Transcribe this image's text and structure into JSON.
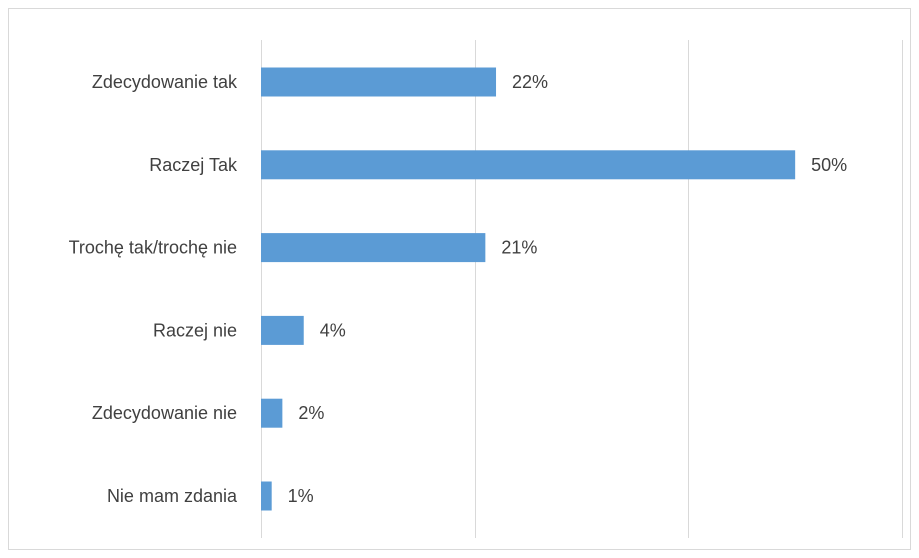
{
  "chart_data": {
    "type": "bar",
    "orientation": "horizontal",
    "categories": [
      "Zdecydowanie tak",
      "Raczej Tak",
      "Trochę tak/trochę nie",
      "Raczej nie",
      "Zdecydowanie nie",
      "Nie mam zdania"
    ],
    "values": [
      22,
      50,
      21,
      4,
      2,
      1
    ],
    "value_labels": [
      "22%",
      "50%",
      "21%",
      "4%",
      "2%",
      "1%"
    ],
    "unit": "%",
    "xlim": [
      0,
      60
    ],
    "grid_x": [
      0,
      20,
      40,
      60
    ],
    "grid": true,
    "legend": "none",
    "title": "",
    "xlabel": "",
    "ylabel": "",
    "bar_color": "#5b9bd5",
    "text_color": "#404040",
    "grid_color": "#d9d9d9"
  }
}
